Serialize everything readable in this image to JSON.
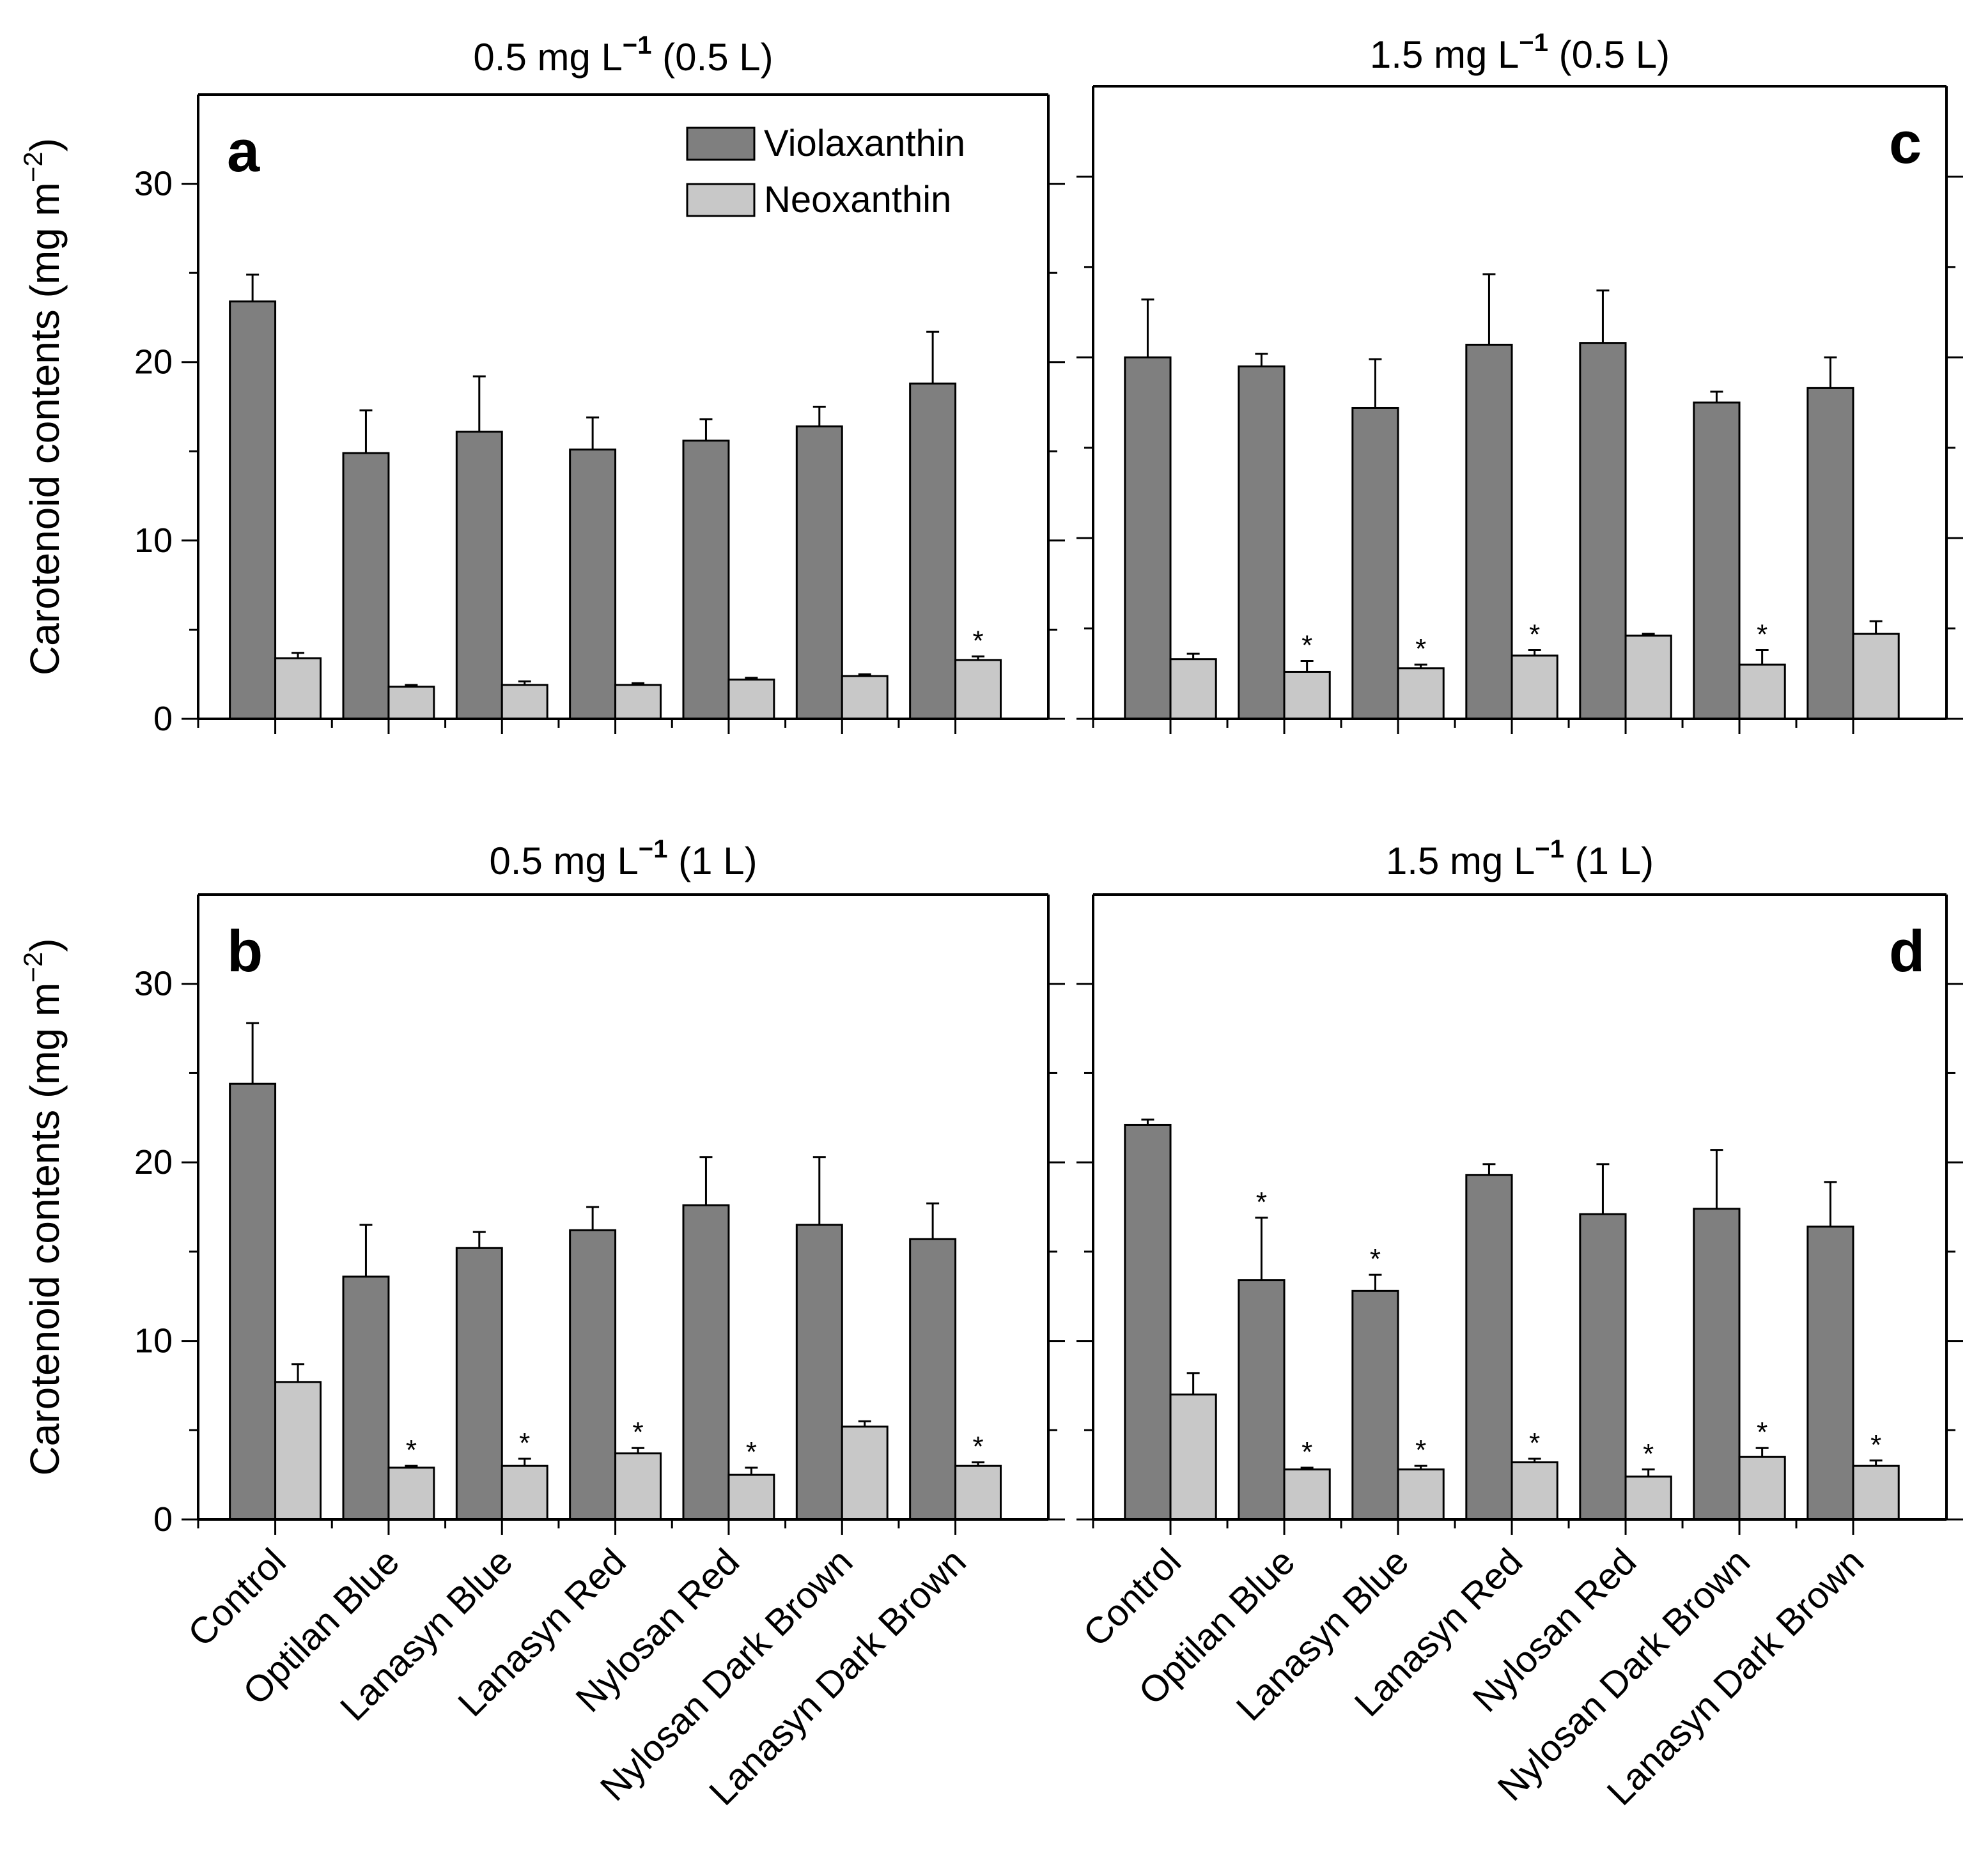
{
  "legend": {
    "series1": "Violaxanthin",
    "series2": "Neoxanthin"
  },
  "colors": {
    "series1": "#7f7f7f",
    "series2": "#c8c8c8",
    "axis": "#000000"
  },
  "ylabel_text": "Carotenoid contents (mg m",
  "ylabel_sup": "−2",
  "ylabel_close": ")",
  "chart_data": [
    {
      "type": "bar",
      "letter": "a",
      "title_pre": "0.5 mg L",
      "title_sup": "−1",
      "title_post": "(0.5 L)",
      "categories": [
        "Control",
        "Optilan Blue",
        "Lanasyn Blue",
        "Lanasyn Red",
        "Nylosan Red",
        "Nylosan Dark Brown",
        "Lanasyn Dark Brown"
      ],
      "series": [
        {
          "name": "Violaxanthin",
          "values": [
            23.4,
            14.9,
            16.1,
            15.1,
            15.6,
            16.4,
            18.8
          ],
          "errors": [
            1.5,
            2.4,
            3.1,
            1.8,
            1.2,
            1.1,
            2.9
          ],
          "stars": [
            false,
            false,
            false,
            false,
            false,
            false,
            false
          ]
        },
        {
          "name": "Neoxanthin",
          "values": [
            3.4,
            1.8,
            1.9,
            1.9,
            2.2,
            2.4,
            3.3
          ],
          "errors": [
            0.3,
            0.1,
            0.2,
            0.1,
            0.1,
            0.1,
            0.2
          ],
          "stars": [
            false,
            false,
            false,
            false,
            false,
            false,
            true
          ]
        }
      ],
      "yticks": [
        "0",
        "10",
        "20",
        "30"
      ],
      "ylim": [
        0,
        35
      ],
      "show_yticklabels": true,
      "show_xlabels": false,
      "show_legend": true
    },
    {
      "type": "bar",
      "letter": "b",
      "title_pre": "0.5 mg L",
      "title_sup": "−1",
      "title_post": "(1 L)",
      "categories": [
        "Control",
        "Optilan Blue",
        "Lanasyn Blue",
        "Lanasyn Red",
        "Nylosan Red",
        "Nylosan Dark Brown",
        "Lanasyn Dark Brown"
      ],
      "series": [
        {
          "name": "Violaxanthin",
          "values": [
            24.4,
            13.6,
            15.2,
            16.2,
            17.6,
            16.5,
            15.7
          ],
          "errors": [
            3.4,
            2.9,
            0.9,
            1.3,
            2.7,
            3.8,
            2.0
          ],
          "stars": [
            false,
            false,
            false,
            false,
            false,
            false,
            false
          ]
        },
        {
          "name": "Neoxanthin",
          "values": [
            7.7,
            2.9,
            3.0,
            3.7,
            2.5,
            5.2,
            3.0
          ],
          "errors": [
            1.0,
            0.1,
            0.4,
            0.3,
            0.4,
            0.3,
            0.2
          ],
          "stars": [
            false,
            true,
            true,
            true,
            true,
            false,
            true
          ]
        }
      ],
      "yticks": [
        "0",
        "10",
        "20",
        "30"
      ],
      "ylim": [
        0,
        35
      ],
      "show_yticklabels": true,
      "show_xlabels": true,
      "show_legend": false
    },
    {
      "type": "bar",
      "letter": "c",
      "title_pre": "1.5 mg L",
      "title_sup": "−1",
      "title_post": "(0.5 L)",
      "categories": [
        "Control",
        "Optilan Blue",
        "Lanasyn Blue",
        "Lanasyn Red",
        "Nylosan Red",
        "Nylosan Dark Brown",
        "Lanasyn Dark Brown"
      ],
      "series": [
        {
          "name": "Violaxanthin",
          "values": [
            20.0,
            19.5,
            17.2,
            20.7,
            20.8,
            17.5,
            18.3
          ],
          "errors": [
            3.2,
            0.7,
            2.7,
            3.9,
            2.9,
            0.6,
            1.7
          ],
          "stars": [
            false,
            false,
            false,
            false,
            false,
            false,
            false
          ]
        },
        {
          "name": "Neoxanthin",
          "values": [
            3.3,
            2.6,
            2.8,
            3.5,
            4.6,
            3.0,
            4.7
          ],
          "errors": [
            0.3,
            0.6,
            0.2,
            0.3,
            0.1,
            0.8,
            0.7
          ],
          "stars": [
            false,
            true,
            true,
            true,
            false,
            true,
            false
          ]
        }
      ],
      "yticks": [
        "0",
        "10",
        "20",
        "30"
      ],
      "ylim": [
        0,
        35
      ],
      "show_yticklabels": false,
      "show_xlabels": false,
      "show_legend": false
    },
    {
      "type": "bar",
      "letter": "d",
      "title_pre": "1.5 mg L",
      "title_sup": "−1",
      "title_post": "(1 L)",
      "categories": [
        "Control",
        "Optilan Blue",
        "Lanasyn Blue",
        "Lanasyn Red",
        "Nylosan Red",
        "Nylosan Dark Brown",
        "Lanasyn Dark Brown"
      ],
      "series": [
        {
          "name": "Violaxanthin",
          "values": [
            22.1,
            13.4,
            12.8,
            19.3,
            17.1,
            17.4,
            16.4
          ],
          "errors": [
            0.3,
            3.5,
            0.9,
            0.6,
            2.8,
            3.3,
            2.5
          ],
          "stars": [
            false,
            true,
            true,
            false,
            false,
            false,
            false
          ]
        },
        {
          "name": "Neoxanthin",
          "values": [
            7.0,
            2.8,
            2.8,
            3.2,
            2.4,
            3.5,
            3.0
          ],
          "errors": [
            1.2,
            0.1,
            0.2,
            0.2,
            0.4,
            0.5,
            0.3
          ],
          "stars": [
            false,
            true,
            true,
            true,
            true,
            true,
            true
          ]
        }
      ],
      "yticks": [
        "0",
        "10",
        "20",
        "30"
      ],
      "ylim": [
        0,
        35
      ],
      "show_yticklabels": false,
      "show_xlabels": true,
      "show_legend": false
    }
  ]
}
